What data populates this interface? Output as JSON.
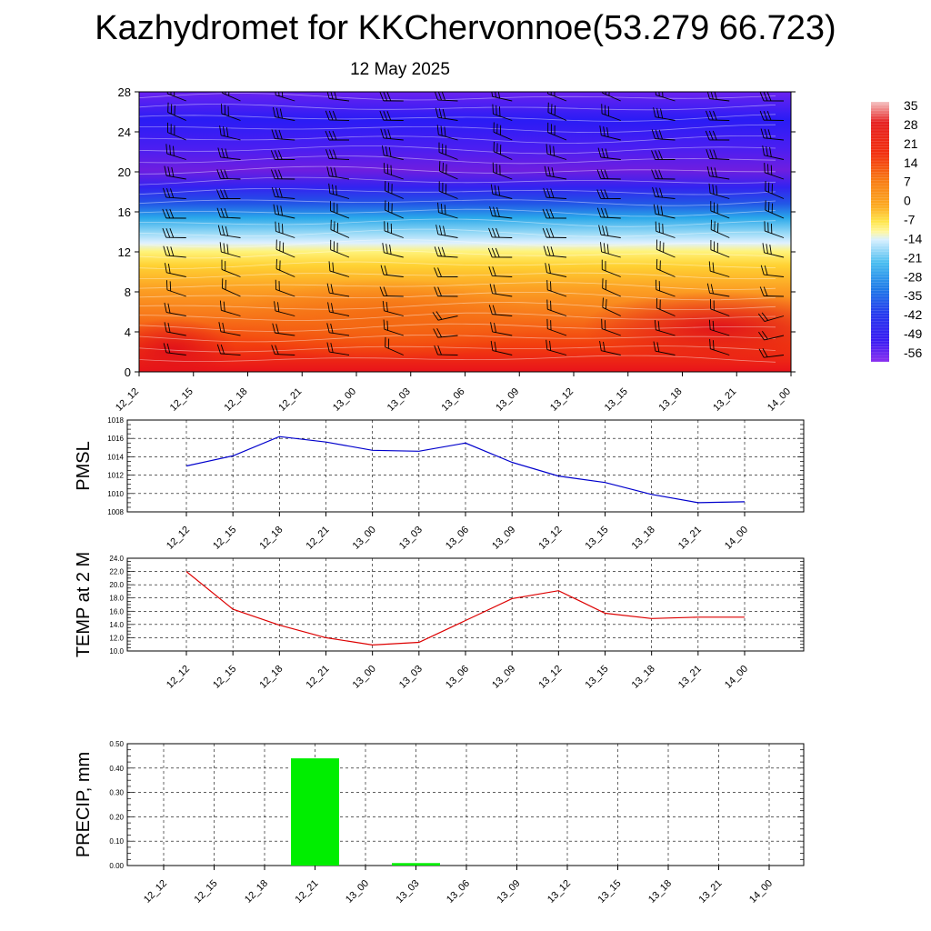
{
  "title": "Kazhydromet for KKChervonnoe(53.279 66.723)",
  "subtitle": "12 May 2025",
  "time_labels": [
    "12_12",
    "12_15",
    "12_18",
    "12_21",
    "13_00",
    "13_03",
    "13_06",
    "13_09",
    "13_12",
    "13_15",
    "13_18",
    "13_21",
    "14_00"
  ],
  "colors": {
    "pmsl_line": "#0000cc",
    "temp_line": "#dd0000",
    "precip_bar": "#00ee00"
  },
  "chart_data": [
    {
      "type": "heatmap",
      "title": "",
      "categories": [
        "12_12",
        "12_15",
        "12_18",
        "12_21",
        "13_00",
        "13_03",
        "13_06",
        "13_09",
        "13_12",
        "13_15",
        "13_18",
        "13_21",
        "14_00"
      ],
      "ylim": [
        0,
        28
      ],
      "y_ticks": [
        "0",
        "4",
        "8",
        "12",
        "16",
        "20",
        "24",
        "28"
      ],
      "colorbar_labels": [
        "35",
        "28",
        "21",
        "14",
        "7",
        "0",
        "-7",
        "-14",
        "-21",
        "-28",
        "-35",
        "-42",
        "-49",
        "-56"
      ],
      "colorbar_range": [
        -63,
        42
      ],
      "overlay": "wind barbs"
    },
    {
      "type": "line",
      "ylabel": "PMSL",
      "categories": [
        "12_12",
        "12_15",
        "12_18",
        "12_21",
        "13_00",
        "13_03",
        "13_06",
        "13_09",
        "13_12",
        "13_15",
        "13_18",
        "13_21",
        "14_00"
      ],
      "series": [
        {
          "values": [
            1013.0,
            1014.1,
            1016.2,
            1015.6,
            1014.7,
            1014.6,
            1015.5,
            1013.4,
            1011.9,
            1011.2,
            1009.9,
            1009.0,
            1009.1
          ]
        }
      ],
      "ylim": [
        1008,
        1018
      ],
      "y_ticks": [
        "1008",
        "1010",
        "1012",
        "1014",
        "1016",
        "1018"
      ],
      "grid": true
    },
    {
      "type": "line",
      "ylabel": "TEMP at 2 M",
      "categories": [
        "12_12",
        "12_15",
        "12_18",
        "12_21",
        "13_00",
        "13_03",
        "13_06",
        "13_09",
        "13_12",
        "13_15",
        "13_18",
        "13_21",
        "14_00"
      ],
      "series": [
        {
          "values": [
            22.0,
            16.3,
            13.9,
            12.0,
            10.9,
            11.3,
            14.6,
            17.9,
            19.1,
            15.7,
            14.9,
            15.1,
            15.1
          ]
        }
      ],
      "ylim": [
        10,
        24
      ],
      "y_ticks": [
        "10.0",
        "12.0",
        "14.0",
        "16.0",
        "18.0",
        "20.0",
        "22.0",
        "24.0"
      ],
      "grid": true
    },
    {
      "type": "bar",
      "ylabel": "PRECIP, mm",
      "categories": [
        "12_12",
        "12_15",
        "12_18",
        "12_21",
        "13_00",
        "13_03",
        "13_06",
        "13_09",
        "13_12",
        "13_15",
        "13_18",
        "13_21",
        "14_00"
      ],
      "values": [
        0,
        0,
        0,
        0.44,
        0,
        0.01,
        0,
        0,
        0,
        0,
        0,
        0,
        0
      ],
      "ylim": [
        0,
        0.5
      ],
      "y_ticks": [
        "0.00",
        "0.10",
        "0.20",
        "0.30",
        "0.40",
        "0.50"
      ],
      "grid": true
    }
  ]
}
